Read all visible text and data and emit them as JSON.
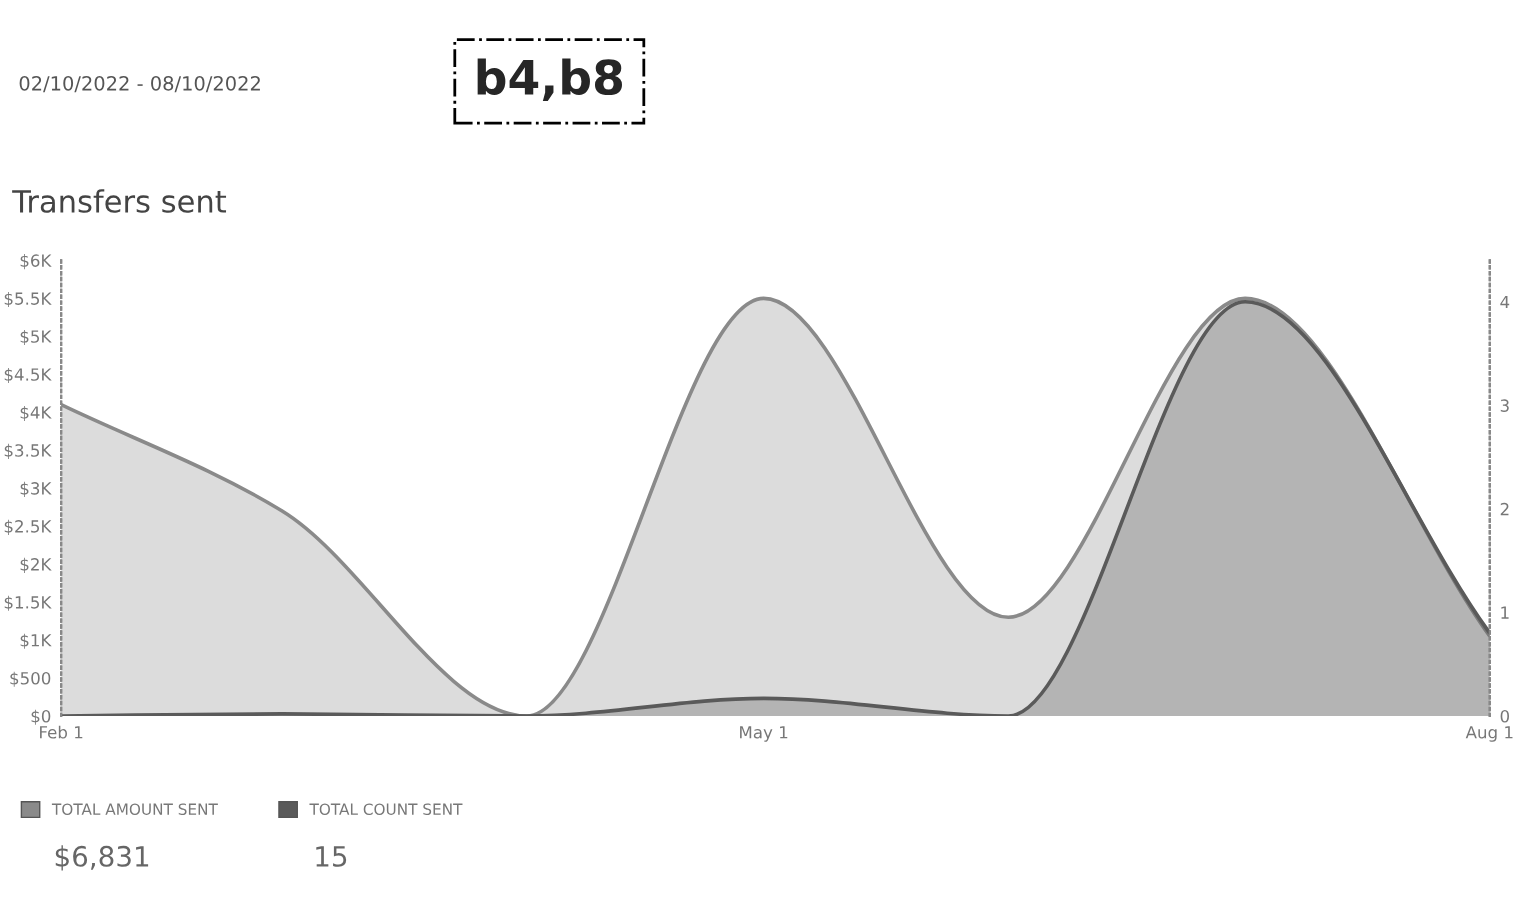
{
  "chart_data": {
    "type": "area",
    "title": "Transfers sent",
    "subtitle": "02/10/2022 - 08/10/2022",
    "x": [
      "2022-02-01",
      "2022-03-01",
      "2022-04-01",
      "2022-05-01",
      "2022-06-01",
      "2022-07-01",
      "2022-08-01"
    ],
    "series": [
      {
        "name": "TOTAL AMOUNT SENT",
        "color": "#8a8a8a",
        "values": [
          4100,
          2700,
          0,
          5500,
          1300,
          5500,
          1050
        ]
      },
      {
        "name": "TOTAL COUNT SENT",
        "color": "#5a5a5a",
        "axis": "y2",
        "values": [
          0,
          0.02,
          0,
          0.17,
          0,
          4,
          0.8
        ]
      }
    ],
    "xlim": [
      "2022-02-01",
      "2022-08-01"
    ],
    "xticks": [
      {
        "value": "2022-02-01",
        "label": "Feb 1"
      },
      {
        "value": "2022-05-01",
        "label": "May 1"
      },
      {
        "value": "2022-08-01",
        "label": "Aug 1"
      }
    ],
    "ylim": [
      0,
      6000
    ],
    "yticks": [
      {
        "value": 0,
        "label": "$0"
      },
      {
        "value": 500,
        "label": "$500"
      },
      {
        "value": 1000,
        "label": "$1K"
      },
      {
        "value": 1500,
        "label": "$1.5K"
      },
      {
        "value": 2000,
        "label": "$2K"
      },
      {
        "value": 2500,
        "label": "$2.5K"
      },
      {
        "value": 3000,
        "label": "$3K"
      },
      {
        "value": 3500,
        "label": "$3.5K"
      },
      {
        "value": 4000,
        "label": "$4K"
      },
      {
        "value": 4500,
        "label": "$4.5K"
      },
      {
        "value": 5000,
        "label": "$5K"
      },
      {
        "value": 5500,
        "label": "$5.5K"
      },
      {
        "value": 6000,
        "label": "$6K"
      }
    ],
    "y2lim": [
      0,
      4.4
    ],
    "y2ticks": [
      0,
      1,
      2,
      3,
      4
    ],
    "grid": false,
    "legend": "bottom left",
    "annotations": [
      "b4,b8",
      "$6,831",
      "15"
    ]
  }
}
